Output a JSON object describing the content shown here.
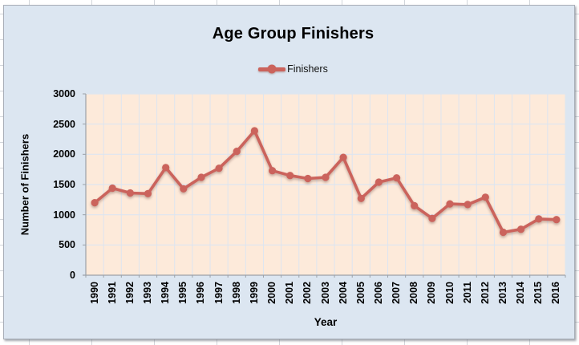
{
  "chart_data": {
    "type": "line",
    "title": "Age Group Finishers",
    "xlabel": "Year",
    "ylabel": "Number of Finishers",
    "categories": [
      "1990",
      "1991",
      "1992",
      "1993",
      "1994",
      "1995",
      "1996",
      "1997",
      "1998",
      "1999",
      "2000",
      "2001",
      "2002",
      "2003",
      "2004",
      "2005",
      "2006",
      "2007",
      "2008",
      "2009",
      "2010",
      "2011",
      "2012",
      "2013",
      "2014",
      "2015",
      "2016"
    ],
    "series": [
      {
        "name": "Finishers",
        "values": [
          1200,
          1440,
          1360,
          1350,
          1780,
          1430,
          1620,
          1770,
          2050,
          2390,
          1730,
          1650,
          1600,
          1620,
          1950,
          1270,
          1540,
          1610,
          1150,
          940,
          1180,
          1170,
          1290,
          710,
          760,
          930,
          920
        ]
      }
    ],
    "ylim": [
      0,
      3000
    ],
    "yticks": [
      0,
      500,
      1000,
      1500,
      2000,
      2500,
      3000
    ],
    "grid": true,
    "legend_position": "top",
    "colors": {
      "line": "#cb635c",
      "chart_bg": "#dce6f1",
      "plot_bg": "#fdeada",
      "grid": "#dde5f0",
      "axis": "#9ba1a8"
    }
  }
}
